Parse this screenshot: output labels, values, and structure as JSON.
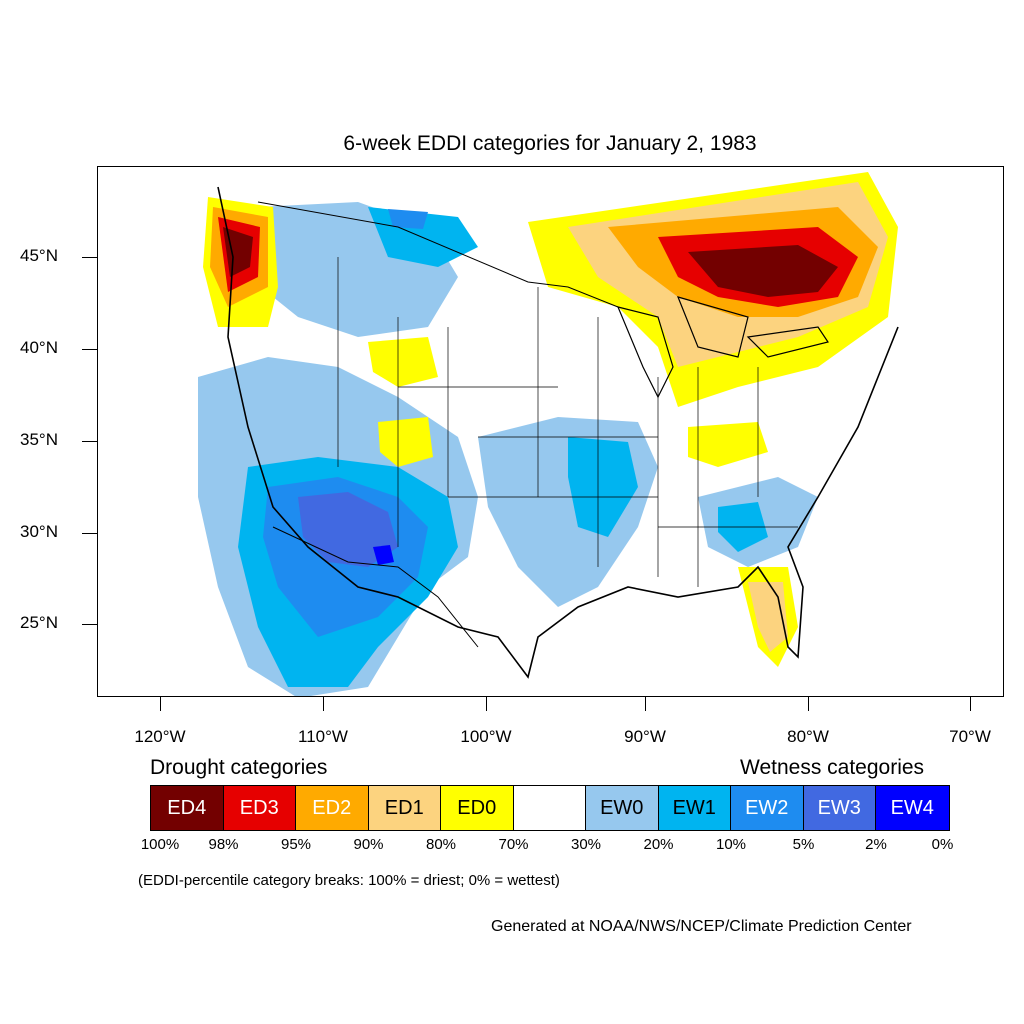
{
  "title": "6-week EDDI categories for January 2, 1983",
  "lat_labels": [
    "45°N",
    "40°N",
    "35°N",
    "30°N",
    "25°N"
  ],
  "lon_labels": [
    "120°W",
    "110°W",
    "100°W",
    "90°W",
    "80°W",
    "70°W"
  ],
  "legend": {
    "drought_heading": "Drought categories",
    "wetness_heading": "Wetness categories",
    "categories": [
      {
        "label": "ED4",
        "color": "#730000",
        "text_color": "#ffffff"
      },
      {
        "label": "ED3",
        "color": "#e60000",
        "text_color": "#ffffff"
      },
      {
        "label": "ED2",
        "color": "#ffaa00",
        "text_color": "#ffffff"
      },
      {
        "label": "ED1",
        "color": "#fcd37f",
        "text_color": "#000000"
      },
      {
        "label": "ED0",
        "color": "#ffff00",
        "text_color": "#000000"
      },
      {
        "label": "",
        "color": "#ffffff",
        "text_color": "#000000"
      },
      {
        "label": "EW0",
        "color": "#96c8ee",
        "text_color": "#000000"
      },
      {
        "label": "EW1",
        "color": "#00b4f0",
        "text_color": "#000000"
      },
      {
        "label": "EW2",
        "color": "#1e8cf0",
        "text_color": "#ffffff"
      },
      {
        "label": "EW3",
        "color": "#4169e1",
        "text_color": "#ffffff"
      },
      {
        "label": "EW4",
        "color": "#0000ff",
        "text_color": "#ffffff"
      }
    ],
    "percent_breaks": [
      "100%",
      "98%",
      "95%",
      "90%",
      "80%",
      "70%",
      "30%",
      "20%",
      "10%",
      "5%",
      "2%",
      "0%"
    ]
  },
  "note": "(EDDI-percentile category breaks: 100% = driest; 0% = wettest)",
  "credit": "Generated at NOAA/NWS/NCEP/Climate Prediction Center"
}
